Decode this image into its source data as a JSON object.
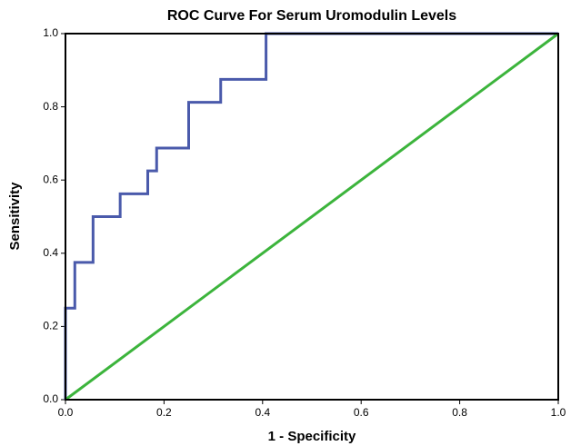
{
  "chart_data": {
    "type": "line",
    "title": "ROC Curve For Serum Uromodulin Levels",
    "x_label": "1 - Specificity",
    "y_label": "Sensitivity",
    "xlim": [
      0,
      1
    ],
    "ylim": [
      0,
      1
    ],
    "xticks": [
      {
        "value": 0,
        "label": "0.0"
      },
      {
        "value": 0.2,
        "label": "0.2"
      },
      {
        "value": 0.4,
        "label": "0.4"
      },
      {
        "value": 0.6,
        "label": "0.6"
      },
      {
        "value": 0.8,
        "label": "0.8"
      },
      {
        "value": 1,
        "label": "1.0"
      }
    ],
    "yticks": [
      {
        "value": 0,
        "label": "0.0"
      },
      {
        "value": 0.2,
        "label": "0.2"
      },
      {
        "value": 0.4,
        "label": "0.4"
      },
      {
        "value": 0.6,
        "label": "0.6"
      },
      {
        "value": 0.8,
        "label": "0.8"
      },
      {
        "value": 1,
        "label": "1.0"
      }
    ],
    "series": [
      {
        "color": "#4a5aab",
        "x": [
          0,
          0,
          0.019,
          0.019,
          0.056,
          0.056,
          0.111,
          0.111,
          0.167,
          0.167,
          0.185,
          0.185,
          0.25,
          0.25,
          0.315,
          0.315,
          0.407,
          0.407,
          1
        ],
        "values": [
          0,
          0.25,
          0.25,
          0.375,
          0.375,
          0.5,
          0.5,
          0.5625,
          0.5625,
          0.625,
          0.625,
          0.6875,
          0.6875,
          0.8125,
          0.8125,
          0.875,
          0.875,
          1,
          1
        ]
      },
      {
        "color": "#3cb43c",
        "x": [
          0,
          1
        ],
        "values": [
          0,
          1
        ]
      }
    ]
  }
}
